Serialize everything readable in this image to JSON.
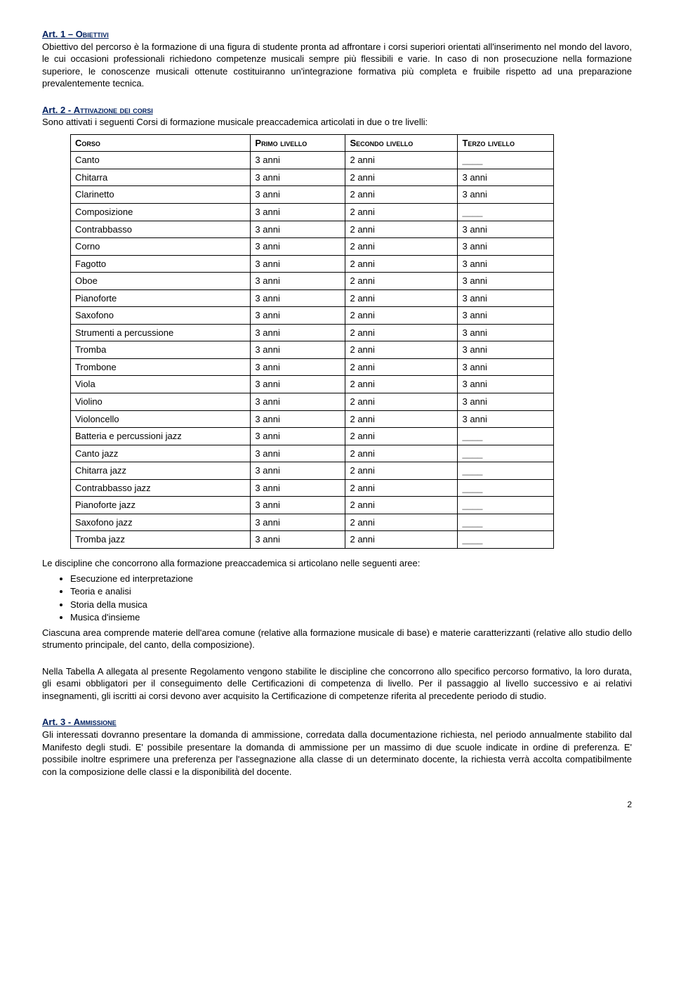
{
  "art1": {
    "heading_prefix": "Art. 1 – ",
    "heading_caps": "Obiettivi",
    "para": "Obiettivo del percorso è la formazione di una figura di studente pronta ad affrontare i corsi superiori orientati all'inserimento nel mondo del lavoro, le cui occasioni professionali richiedono competenze musicali sempre più flessibili e varie. In caso di non prosecuzione nella formazione superiore, le conoscenze musicali ottenute costituiranno un'integrazione formativa più completa e fruibile rispetto ad una preparazione prevalentemente tecnica."
  },
  "art2": {
    "heading_prefix": "Art. 2 - ",
    "heading_caps": "Attivazione dei corsi",
    "intro": "Sono attivati i seguenti Corsi di formazione musicale preaccademica articolati in due o tre livelli:",
    "headers": {
      "c0": "Corso",
      "c1": "Primo livello",
      "c2": "Secondo livello",
      "c3": "Terzo livello"
    },
    "rows": [
      {
        "c0": "Canto",
        "c1": "3 anni",
        "c2": "2 anni",
        "c3": "____"
      },
      {
        "c0": "Chitarra",
        "c1": "3 anni",
        "c2": "2 anni",
        "c3": "3 anni"
      },
      {
        "c0": "Clarinetto",
        "c1": "3 anni",
        "c2": "2 anni",
        "c3": "3 anni"
      },
      {
        "c0": "Composizione",
        "c1": "3 anni",
        "c2": "2 anni",
        "c3": "____"
      },
      {
        "c0": "Contrabbasso",
        "c1": "3 anni",
        "c2": "2 anni",
        "c3": "3 anni"
      },
      {
        "c0": "Corno",
        "c1": "3 anni",
        "c2": "2 anni",
        "c3": "3 anni"
      },
      {
        "c0": "Fagotto",
        "c1": "3 anni",
        "c2": "2 anni",
        "c3": "3 anni"
      },
      {
        "c0": "Oboe",
        "c1": "3 anni",
        "c2": "2 anni",
        "c3": "3 anni"
      },
      {
        "c0": "Pianoforte",
        "c1": "3 anni",
        "c2": "2 anni",
        "c3": "3 anni"
      },
      {
        "c0": "Saxofono",
        "c1": "3 anni",
        "c2": "2 anni",
        "c3": "3 anni"
      },
      {
        "c0": "Strumenti a percussione",
        "c1": "3 anni",
        "c2": "2 anni",
        "c3": "3 anni"
      },
      {
        "c0": "Tromba",
        "c1": "3 anni",
        "c2": "2 anni",
        "c3": "3 anni"
      },
      {
        "c0": "Trombone",
        "c1": "3 anni",
        "c2": "2 anni",
        "c3": "3 anni"
      },
      {
        "c0": "Viola",
        "c1": "3 anni",
        "c2": "2 anni",
        "c3": "3 anni"
      },
      {
        "c0": "Violino",
        "c1": "3 anni",
        "c2": "2 anni",
        "c3": "3 anni"
      },
      {
        "c0": "Violoncello",
        "c1": "3 anni",
        "c2": "2 anni",
        "c3": "3 anni"
      },
      {
        "c0": "Batteria e percussioni jazz",
        "c1": "3 anni",
        "c2": "2 anni",
        "c3": "____"
      },
      {
        "c0": "Canto jazz",
        "c1": "3 anni",
        "c2": "2 anni",
        "c3": "____"
      },
      {
        "c0": "Chitarra jazz",
        "c1": "3 anni",
        "c2": "2 anni",
        "c3": "____"
      },
      {
        "c0": "Contrabbasso jazz",
        "c1": "3 anni",
        "c2": "2 anni",
        "c3": "____"
      },
      {
        "c0": "Pianoforte jazz",
        "c1": "3 anni",
        "c2": "2 anni",
        "c3": "____"
      },
      {
        "c0": "Saxofono jazz",
        "c1": "3 anni",
        "c2": "2 anni",
        "c3": "____"
      },
      {
        "c0": "Tromba jazz",
        "c1": "3 anni",
        "c2": "2 anni",
        "c3": "____"
      }
    ],
    "post_intro": "Le discipline che concorrono alla formazione preaccademica si articolano nelle seguenti aree:",
    "bullets": [
      "Esecuzione ed interpretazione",
      "Teoria e analisi",
      "Storia della musica",
      "Musica d'insieme"
    ],
    "post_bullets": "Ciascuna area comprende materie dell'area comune (relative alla formazione musicale di base) e materie caratterizzanti (relative allo studio dello strumento principale, del canto, della composizione).",
    "tab_a": "Nella Tabella A allegata al presente Regolamento vengono stabilite le discipline che concorrono allo specifico percorso formativo, la loro durata, gli esami obbligatori per il conseguimento delle Certificazioni di competenza di livello. Per il passaggio al livello successivo e ai relativi insegnamenti, gli iscritti ai corsi devono aver acquisito la Certificazione di competenze riferita al precedente periodo di studio."
  },
  "art3": {
    "heading_prefix": "Art. 3 - ",
    "heading_caps": "Ammissione",
    "para": "Gli interessati dovranno presentare la domanda di ammissione, corredata dalla documentazione richiesta, nel periodo annualmente stabilito dal Manifesto degli studi. E' possibile presentare la domanda di ammissione per un massimo di due scuole indicate in ordine di preferenza. E' possibile inoltre esprimere una preferenza per l'assegnazione alla classe di un determinato docente, la richiesta verrà accolta compatibilmente con la composizione delle classi e la disponibilità del docente."
  },
  "pagenum": "2"
}
